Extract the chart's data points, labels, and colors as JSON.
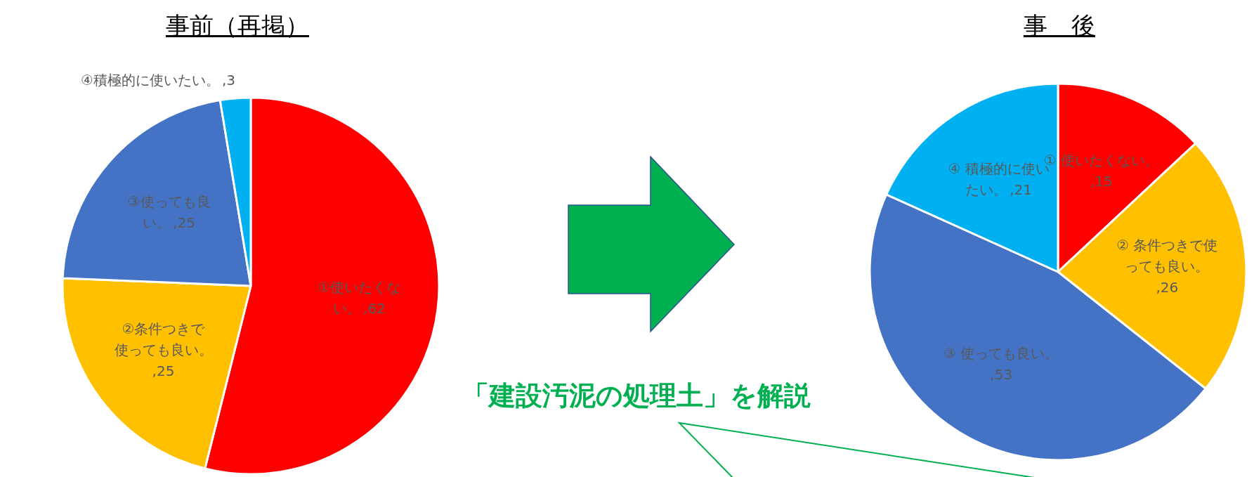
{
  "chart_data": [
    {
      "type": "pie",
      "title": "事前（再掲）",
      "categories": [
        "①使いたくない。",
        "②条件つきで使っても良い。",
        "③使っても良い。",
        "④積極的に使いたい。"
      ],
      "values": [
        62,
        25,
        25,
        3
      ],
      "colors": [
        "#ff0000",
        "#ffc000",
        "#4472c4",
        "#00b0f0"
      ],
      "value_labels": [
        ",62",
        ",25",
        ",25",
        ",3"
      ],
      "legend": false
    },
    {
      "type": "pie",
      "title": "事　後",
      "categories": [
        "① 使いたくない。",
        "② 条件つきで使っても良い。",
        "③ 使っても良い。",
        "④ 積極的に使いたい。"
      ],
      "values": [
        15,
        26,
        53,
        21
      ],
      "colors": [
        "#ff0000",
        "#ffc000",
        "#4472c4",
        "#00b0f0"
      ],
      "value_labels": [
        ",15",
        ",26",
        ",53",
        ",21"
      ],
      "legend": false,
      "annotations": [
        "「建設汚泥の処理土」を解説"
      ]
    }
  ]
}
